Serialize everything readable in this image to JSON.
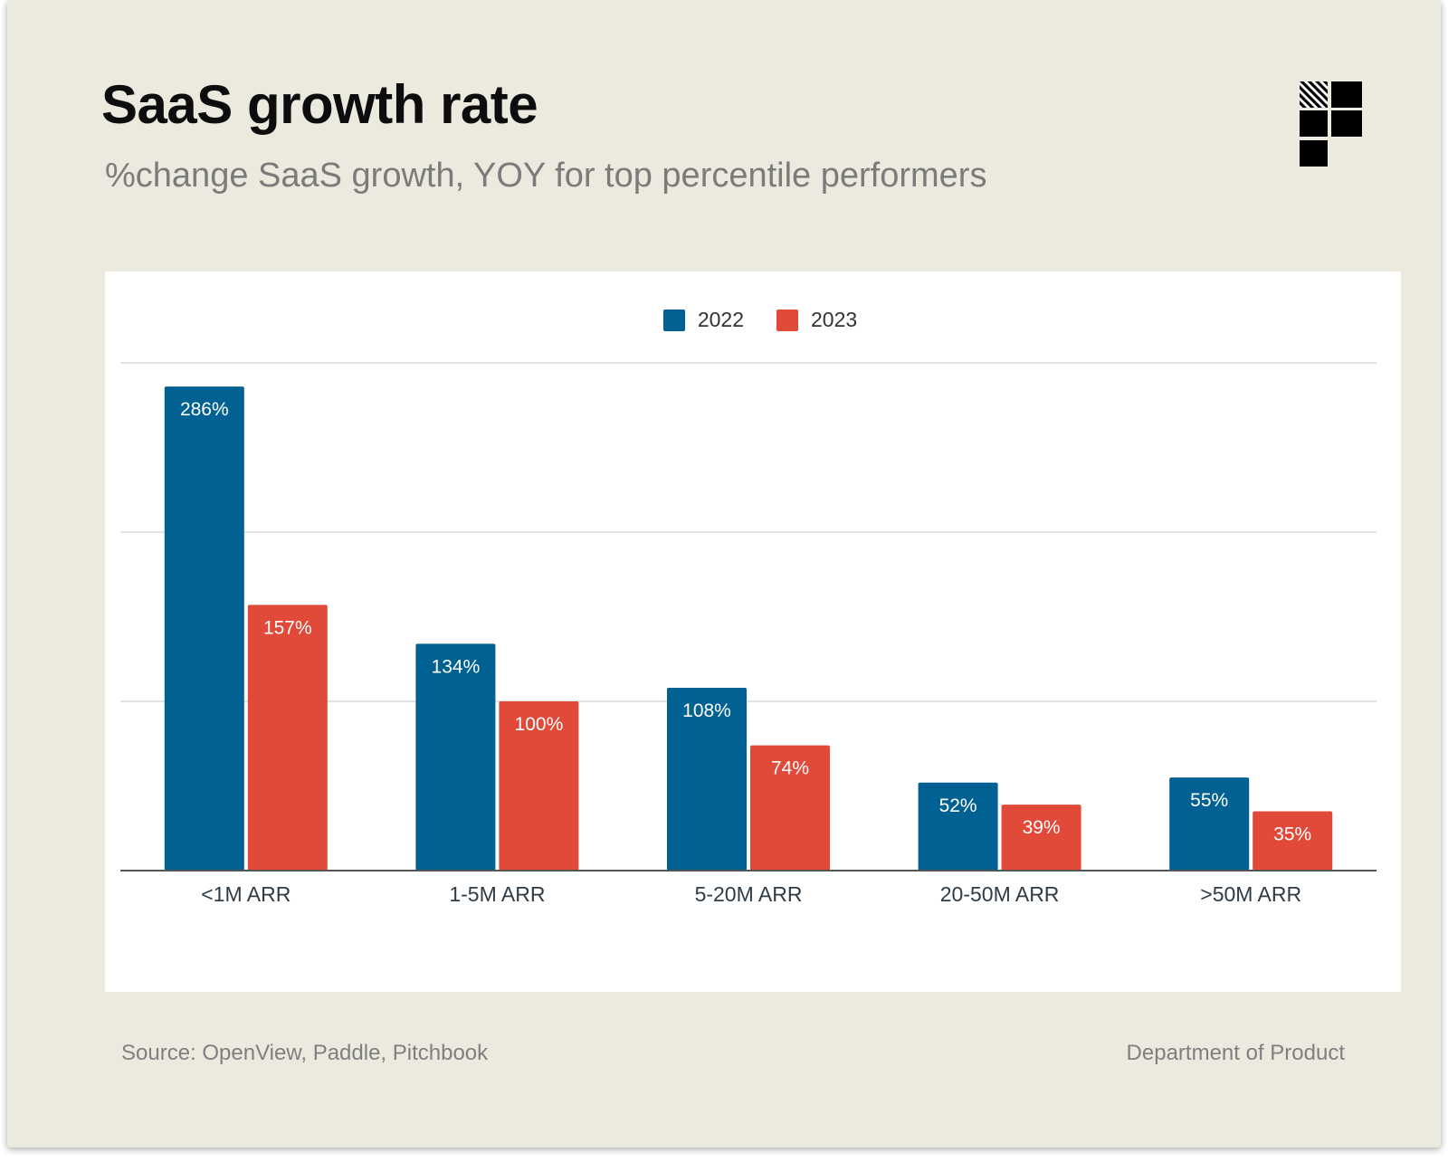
{
  "header": {
    "title": "SaaS growth rate",
    "subtitle": "%change SaaS growth, YOY for top percentile performers"
  },
  "footer": {
    "source": "Source: OpenView, Paddle, Pitchbook",
    "brand": "Department of Product"
  },
  "logo": {
    "icon": "department-of-product-logo"
  },
  "colors": {
    "background": "#eceadf",
    "series_2022": "#006192",
    "series_2023": "#e14939",
    "gridline": "#d9d9d9",
    "axis": "#555555"
  },
  "chart_data": {
    "type": "bar",
    "title": "SaaS growth rate",
    "subtitle": "%change SaaS growth, YOY for top percentile performers",
    "categories": [
      "<1M ARR",
      "1-5M ARR",
      "5-20M ARR",
      "20-50M ARR",
      ">50M ARR"
    ],
    "series": [
      {
        "name": "2022",
        "values": [
          286,
          134,
          108,
          52,
          55
        ],
        "labels": [
          "286%",
          "134%",
          "108%",
          "52%",
          "55%"
        ]
      },
      {
        "name": "2023",
        "values": [
          157,
          100,
          74,
          39,
          35
        ],
        "labels": [
          "157%",
          "100%",
          "74%",
          "39%",
          "35%"
        ]
      }
    ],
    "xlabel": "",
    "ylabel": "",
    "ylim": [
      0,
      300
    ],
    "gridlines": [
      100,
      200,
      300
    ],
    "y_tick_labels_shown": false,
    "legend_position": "top-center",
    "grid": true
  }
}
